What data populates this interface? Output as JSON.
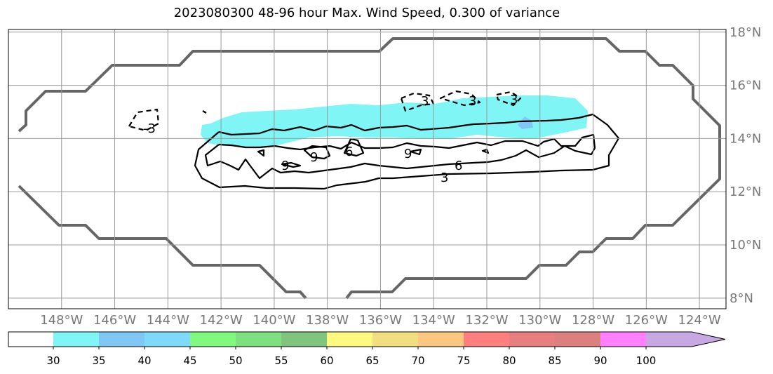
{
  "chart_data": {
    "type": "contour_map",
    "title": "2023080300 48-96 hour Max. Wind Speed, 0.300 of variance",
    "lon_range": [
      -150,
      -123
    ],
    "lat_range": [
      7.6,
      18.1
    ],
    "lon_ticks": [
      "148°W",
      "146°W",
      "144°W",
      "142°W",
      "140°W",
      "138°W",
      "136°W",
      "134°W",
      "132°W",
      "130°W",
      "128°W",
      "126°W",
      "124°W"
    ],
    "lat_ticks": [
      "8°N",
      "10°N",
      "12°N",
      "14°N",
      "16°N",
      "18°N"
    ],
    "grid": true,
    "colorbar": {
      "levels": [
        "30",
        "35",
        "40",
        "45",
        "50",
        "55",
        "60",
        "65",
        "70",
        "75",
        "80",
        "85",
        "90",
        "100"
      ],
      "colors": [
        "#7ff5f5",
        "#7fc8f5",
        "#7fd9fa",
        "#7ffa7f",
        "#7fe07f",
        "#7fc47f",
        "#fffa7f",
        "#f0de7f",
        "#fcc87f",
        "#ff7f7f",
        "#e87f7f",
        "#dc7f7f",
        "#ff7fff",
        "#c8a8e3"
      ],
      "extend": "max"
    },
    "contour_labels": [
      "3",
      "6",
      "9",
      "6",
      "9",
      "9",
      "3",
      "3",
      "3",
      "3",
      "-3"
    ],
    "shaded_region": {
      "value_min": 30,
      "value_max": 35,
      "lon": [
        -142.5,
        -128.0
      ],
      "lat": [
        13.8,
        15.2
      ]
    }
  }
}
